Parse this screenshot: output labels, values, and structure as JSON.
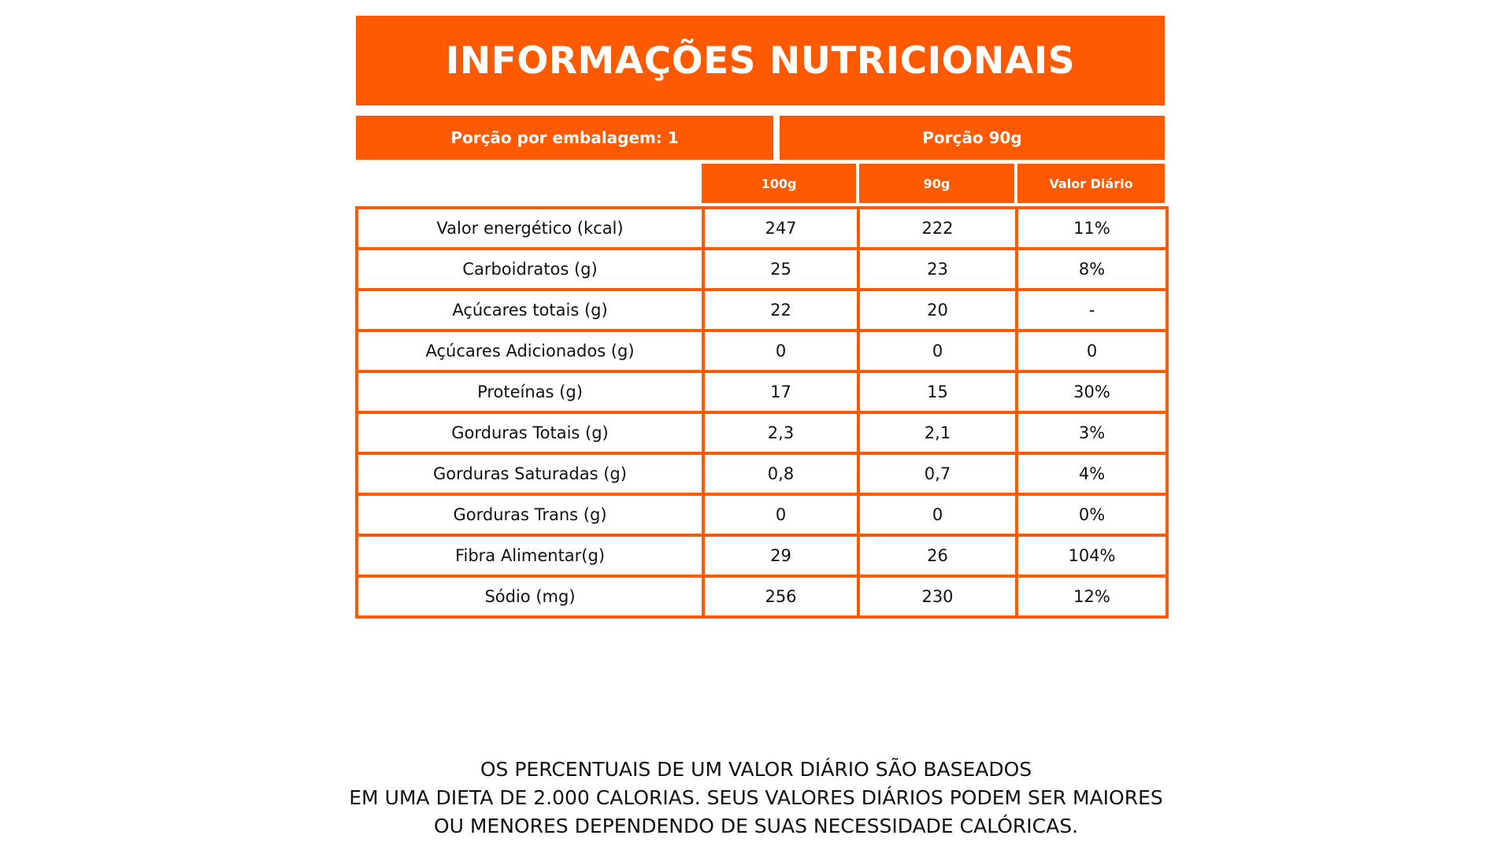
{
  "title": "INFORMAÇÕES NUTRICIONAIS",
  "portion": {
    "per_package": "Porção por embalagem: 1",
    "size": "Porção  90g"
  },
  "columns": {
    "per_100g": "100g",
    "per_90g": "90g",
    "daily_value": "Valor Diário"
  },
  "rows": [
    {
      "label": "Valor energético (kcal)",
      "per_100g": "247",
      "per_90g": "222",
      "daily_value": "11%"
    },
    {
      "label": "Carboidratos (g)",
      "per_100g": "25",
      "per_90g": "23",
      "daily_value": "8%"
    },
    {
      "label": "Açúcares totais (g)",
      "per_100g": "22",
      "per_90g": "20",
      "daily_value": "-"
    },
    {
      "label": "Açúcares Adicionados (g)",
      "per_100g": "0",
      "per_90g": "0",
      "daily_value": "0"
    },
    {
      "label": "Proteínas (g)",
      "per_100g": "17",
      "per_90g": "15",
      "daily_value": "30%"
    },
    {
      "label": "Gorduras Totais (g)",
      "per_100g": "2,3",
      "per_90g": "2,1",
      "daily_value": "3%"
    },
    {
      "label": "Gorduras Saturadas (g)",
      "per_100g": "0,8",
      "per_90g": "0,7",
      "daily_value": "4%"
    },
    {
      "label": "Gorduras Trans (g)",
      "per_100g": "0",
      "per_90g": "0",
      "daily_value": "0%"
    },
    {
      "label": "Fibra Alimentar(g)",
      "per_100g": "29",
      "per_90g": "26",
      "daily_value": "104%"
    },
    {
      "label": "Sódio (mg)",
      "per_100g": "256",
      "per_90g": "230",
      "daily_value": "12%"
    }
  ],
  "footnote": {
    "line1": "OS PERCENTUAIS DE UM VALOR DIÁRIO SÃO BASEADOS",
    "line2": "EM UMA DIETA DE 2.000 CALORIAS. SEUS VALORES DIÁRIOS PODEM SER MAIORES",
    "line3": "OU MENORES DEPENDENDO DE SUAS NECESSIDADE CALÓRICAS."
  },
  "colors": {
    "accent": "#ff5a00",
    "text": "#111111",
    "header_text": "#ffffff"
  }
}
